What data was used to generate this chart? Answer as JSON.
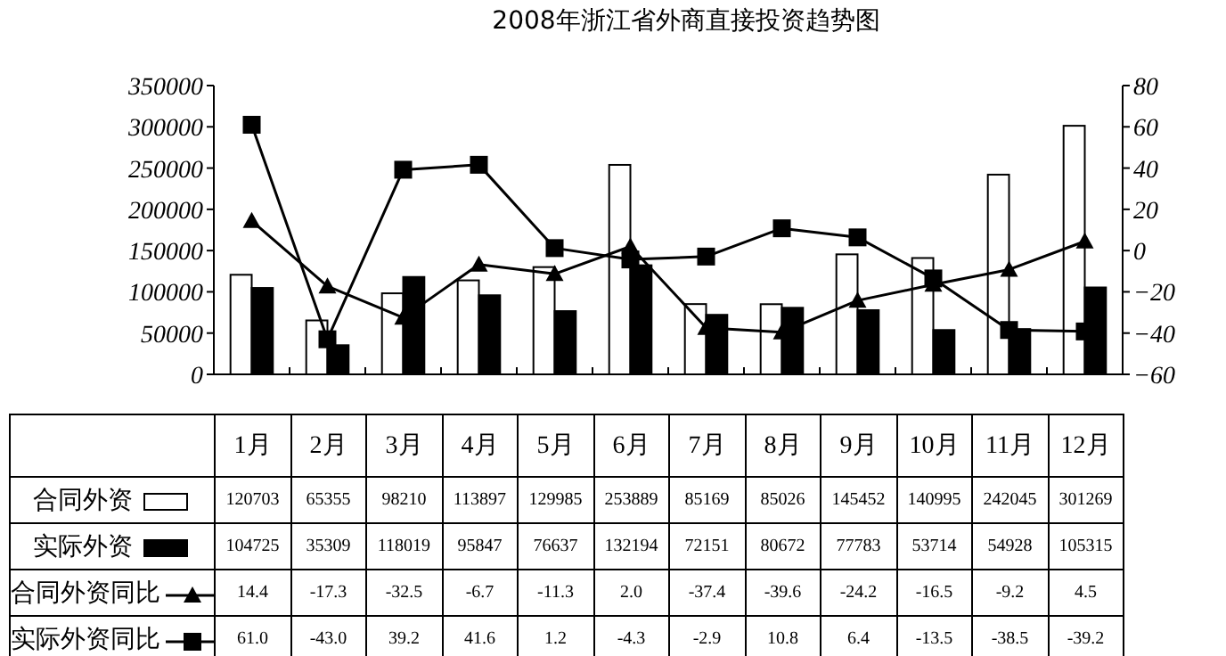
{
  "chart_data": {
    "type": "bar",
    "title": "2008年浙江省外商直接投资趋势图",
    "categories": [
      "1月",
      "2月",
      "3月",
      "4月",
      "5月",
      "6月",
      "7月",
      "8月",
      "9月",
      "10月",
      "11月",
      "12月"
    ],
    "series": [
      {
        "name": "合同外资",
        "color": "#ffffff",
        "values": [
          120703,
          65355,
          98210,
          113897,
          129985,
          253889,
          85169,
          85026,
          145452,
          140995,
          242045,
          301269
        ],
        "value_labels": [
          "120703",
          "65355",
          "98210",
          "113897",
          "129985",
          "253889",
          "85169",
          "85026",
          "145452",
          "140995",
          "242045",
          "301269"
        ]
      },
      {
        "name": "实际外资",
        "color": "#000000",
        "values": [
          104725,
          35309,
          118019,
          95847,
          76637,
          132194,
          72151,
          80672,
          77783,
          53714,
          54928,
          105315
        ],
        "value_labels": [
          "104725",
          "35309",
          "118019",
          "95847",
          "76637",
          "132194",
          "72151",
          "80672",
          "77783",
          "53714",
          "54928",
          "105315"
        ]
      },
      {
        "name": "合同外资同比",
        "type": "line",
        "axis": "y2",
        "marker": "triangle",
        "color": "#000000",
        "values": [
          14.4,
          -17.3,
          -32.5,
          -6.7,
          -11.3,
          2.0,
          -37.4,
          -39.6,
          -24.2,
          -16.5,
          -9.2,
          4.5
        ],
        "value_labels": [
          "14.4",
          "-17.3",
          "-32.5",
          "-6.7",
          "-11.3",
          "2.0",
          "-37.4",
          "-39.6",
          "-24.2",
          "-16.5",
          "-9.2",
          "4.5"
        ]
      },
      {
        "name": "实际外资同比",
        "type": "line",
        "axis": "y2",
        "marker": "square",
        "color": "#000000",
        "values": [
          61.0,
          -43.0,
          39.2,
          41.6,
          1.2,
          -4.3,
          -2.9,
          10.8,
          6.4,
          -13.5,
          -38.5,
          -39.2
        ],
        "value_labels": [
          "61.0",
          "-43.0",
          "39.2",
          "41.6",
          "1.2",
          "-4.3",
          "-2.9",
          "10.8",
          "6.4",
          "-13.5",
          "-38.5",
          "-39.2"
        ]
      }
    ],
    "ylim": [
      0,
      350000
    ],
    "yticks": [
      0,
      50000,
      100000,
      150000,
      200000,
      250000,
      300000,
      350000
    ],
    "y2lim": [
      -60,
      80
    ],
    "y2ticks": [
      -60,
      -40,
      -20,
      0,
      20,
      40,
      60,
      80
    ],
    "legend": "bottom",
    "grid": false
  }
}
